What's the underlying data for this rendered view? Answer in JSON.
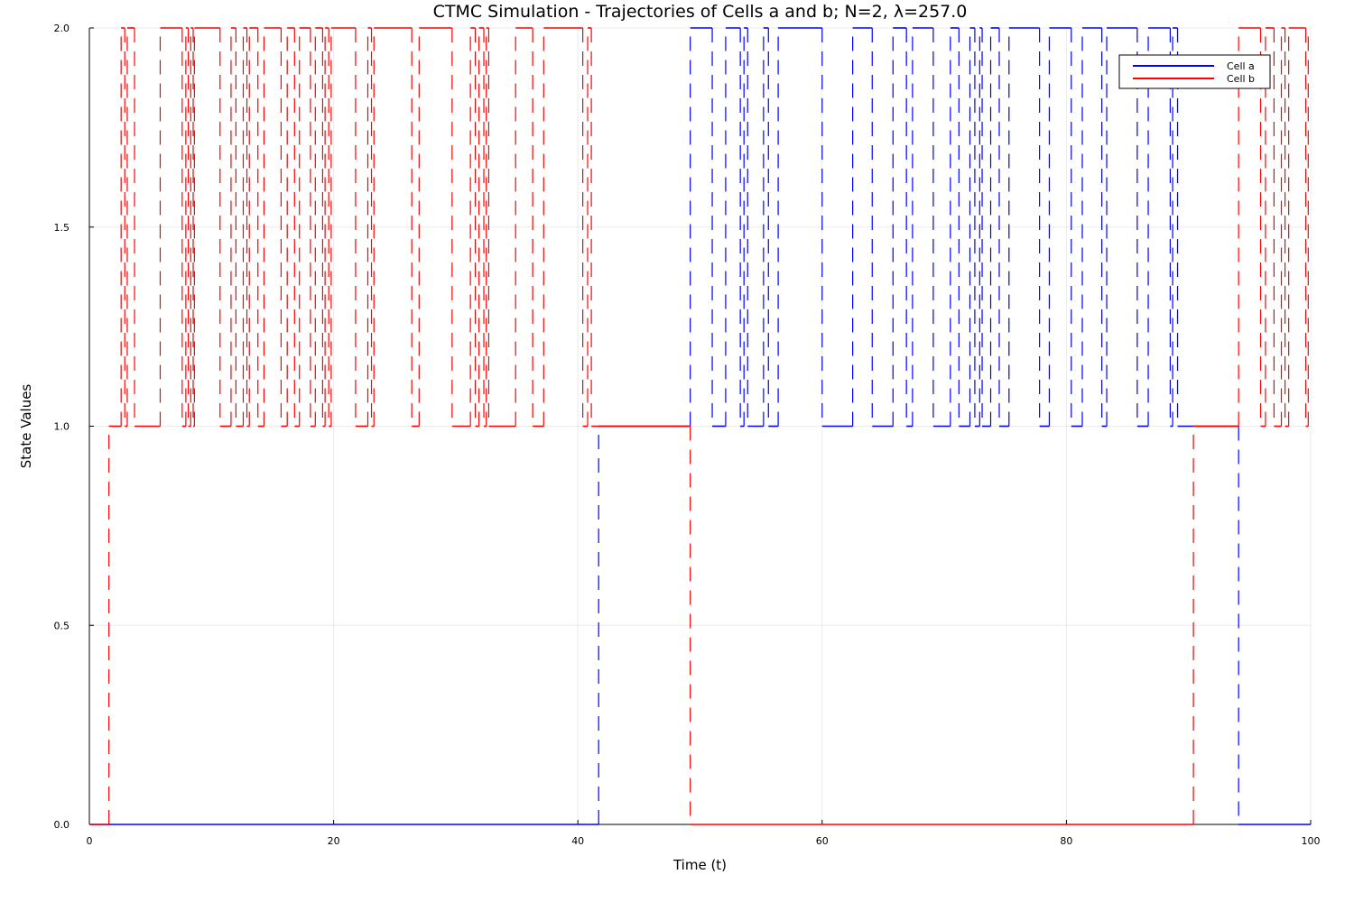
{
  "chart_data": {
    "type": "line",
    "step": true,
    "title": "CTMC Simulation - Trajectories of Cells a and b; N=2, λ=257.0",
    "xlabel": "Time (t)",
    "ylabel": "State Values",
    "xlim": [
      0,
      100
    ],
    "ylim": [
      0,
      2
    ],
    "xticks": [
      "0",
      "20",
      "40",
      "60",
      "80",
      "100"
    ],
    "yticks": [
      "0.0",
      "0.5",
      "1.0",
      "1.5",
      "2.0"
    ],
    "grid": true,
    "legend_position": "top-right",
    "series": [
      {
        "name": "Cell a",
        "color": "#0000ff",
        "points": [
          [
            0,
            0
          ],
          [
            41.7,
            0
          ],
          [
            41.7,
            1
          ],
          [
            49.2,
            1
          ],
          [
            49.2,
            2
          ],
          [
            51.0,
            2
          ],
          [
            51.0,
            1
          ],
          [
            52.1,
            1
          ],
          [
            52.1,
            2
          ],
          [
            53.3,
            2
          ],
          [
            53.3,
            1
          ],
          [
            53.6,
            1
          ],
          [
            53.6,
            2
          ],
          [
            53.9,
            2
          ],
          [
            53.9,
            1
          ],
          [
            55.2,
            1
          ],
          [
            55.2,
            2
          ],
          [
            55.6,
            2
          ],
          [
            55.6,
            1
          ],
          [
            56.4,
            1
          ],
          [
            56.4,
            2
          ],
          [
            60.0,
            2
          ],
          [
            60.0,
            1
          ],
          [
            62.5,
            1
          ],
          [
            62.5,
            2
          ],
          [
            64.1,
            2
          ],
          [
            64.1,
            1
          ],
          [
            65.8,
            1
          ],
          [
            65.8,
            2
          ],
          [
            66.9,
            2
          ],
          [
            66.9,
            1
          ],
          [
            67.4,
            1
          ],
          [
            67.4,
            2
          ],
          [
            69.1,
            2
          ],
          [
            69.1,
            1
          ],
          [
            70.5,
            1
          ],
          [
            70.5,
            2
          ],
          [
            71.2,
            2
          ],
          [
            71.2,
            1
          ],
          [
            72.1,
            1
          ],
          [
            72.1,
            2
          ],
          [
            72.5,
            2
          ],
          [
            72.5,
            1
          ],
          [
            72.9,
            1
          ],
          [
            72.9,
            2
          ],
          [
            73.1,
            2
          ],
          [
            73.1,
            1
          ],
          [
            73.8,
            1
          ],
          [
            73.8,
            2
          ],
          [
            74.5,
            2
          ],
          [
            74.5,
            1
          ],
          [
            75.3,
            1
          ],
          [
            75.3,
            2
          ],
          [
            77.8,
            2
          ],
          [
            77.8,
            1
          ],
          [
            78.6,
            1
          ],
          [
            78.6,
            2
          ],
          [
            80.4,
            2
          ],
          [
            80.4,
            1
          ],
          [
            81.3,
            1
          ],
          [
            81.3,
            2
          ],
          [
            82.9,
            2
          ],
          [
            82.9,
            1
          ],
          [
            83.3,
            1
          ],
          [
            83.3,
            2
          ],
          [
            85.8,
            2
          ],
          [
            85.8,
            1
          ],
          [
            86.7,
            1
          ],
          [
            86.7,
            2
          ],
          [
            88.5,
            2
          ],
          [
            88.5,
            1
          ],
          [
            88.7,
            1
          ],
          [
            88.7,
            2
          ],
          [
            89.1,
            2
          ],
          [
            89.1,
            1
          ],
          [
            94.1,
            1
          ],
          [
            94.1,
            0
          ],
          [
            100,
            0
          ]
        ]
      },
      {
        "name": "Cell b",
        "color": "#ff0000",
        "points": [
          [
            0,
            0
          ],
          [
            1.6,
            0
          ],
          [
            1.6,
            1
          ],
          [
            2.6,
            1
          ],
          [
            2.6,
            2
          ],
          [
            2.9,
            2
          ],
          [
            2.9,
            1
          ],
          [
            3.1,
            1
          ],
          [
            3.1,
            2
          ],
          [
            3.7,
            2
          ],
          [
            3.7,
            1
          ],
          [
            5.8,
            1
          ],
          [
            5.8,
            2
          ],
          [
            7.6,
            2
          ],
          [
            7.6,
            1
          ],
          [
            7.9,
            1
          ],
          [
            7.9,
            2
          ],
          [
            8.1,
            2
          ],
          [
            8.1,
            1
          ],
          [
            8.3,
            1
          ],
          [
            8.3,
            2
          ],
          [
            8.5,
            2
          ],
          [
            8.5,
            1
          ],
          [
            8.6,
            1
          ],
          [
            8.6,
            2
          ],
          [
            10.7,
            2
          ],
          [
            10.7,
            1
          ],
          [
            11.6,
            1
          ],
          [
            11.6,
            2
          ],
          [
            12.0,
            2
          ],
          [
            12.0,
            1
          ],
          [
            12.6,
            1
          ],
          [
            12.6,
            2
          ],
          [
            12.9,
            2
          ],
          [
            12.9,
            1
          ],
          [
            13.1,
            1
          ],
          [
            13.1,
            2
          ],
          [
            13.8,
            2
          ],
          [
            13.8,
            1
          ],
          [
            14.3,
            1
          ],
          [
            14.3,
            2
          ],
          [
            15.7,
            2
          ],
          [
            15.7,
            1
          ],
          [
            16.2,
            1
          ],
          [
            16.2,
            2
          ],
          [
            16.8,
            2
          ],
          [
            16.8,
            1
          ],
          [
            17.2,
            1
          ],
          [
            17.2,
            2
          ],
          [
            18.1,
            2
          ],
          [
            18.1,
            1
          ],
          [
            18.5,
            1
          ],
          [
            18.5,
            2
          ],
          [
            19.1,
            2
          ],
          [
            19.1,
            1
          ],
          [
            19.3,
            1
          ],
          [
            19.3,
            2
          ],
          [
            19.6,
            2
          ],
          [
            19.6,
            1
          ],
          [
            19.8,
            1
          ],
          [
            19.8,
            2
          ],
          [
            21.8,
            2
          ],
          [
            21.8,
            1
          ],
          [
            22.8,
            1
          ],
          [
            22.8,
            2
          ],
          [
            23.1,
            2
          ],
          [
            23.1,
            1
          ],
          [
            23.3,
            1
          ],
          [
            23.3,
            2
          ],
          [
            26.4,
            2
          ],
          [
            26.4,
            1
          ],
          [
            27.0,
            1
          ],
          [
            27.0,
            2
          ],
          [
            29.7,
            2
          ],
          [
            29.7,
            1
          ],
          [
            31.2,
            1
          ],
          [
            31.2,
            2
          ],
          [
            31.6,
            2
          ],
          [
            31.6,
            1
          ],
          [
            31.9,
            1
          ],
          [
            31.9,
            2
          ],
          [
            32.3,
            2
          ],
          [
            32.3,
            1
          ],
          [
            32.5,
            1
          ],
          [
            32.5,
            2
          ],
          [
            32.7,
            2
          ],
          [
            32.7,
            1
          ],
          [
            34.9,
            1
          ],
          [
            34.9,
            2
          ],
          [
            36.3,
            2
          ],
          [
            36.3,
            1
          ],
          [
            37.2,
            1
          ],
          [
            37.2,
            2
          ],
          [
            40.4,
            2
          ],
          [
            40.4,
            1
          ],
          [
            40.8,
            1
          ],
          [
            40.8,
            2
          ],
          [
            41.1,
            2
          ],
          [
            41.1,
            1
          ],
          [
            49.2,
            1
          ],
          [
            49.2,
            0
          ],
          [
            90.4,
            0
          ],
          [
            90.4,
            1
          ],
          [
            94.1,
            1
          ],
          [
            94.1,
            2
          ],
          [
            95.9,
            2
          ],
          [
            95.9,
            1
          ],
          [
            96.3,
            1
          ],
          [
            96.3,
            2
          ],
          [
            97.0,
            2
          ],
          [
            97.0,
            1
          ],
          [
            97.6,
            1
          ],
          [
            97.6,
            2
          ],
          [
            97.9,
            2
          ],
          [
            97.9,
            1
          ],
          [
            98.2,
            1
          ],
          [
            98.2,
            2
          ],
          [
            99.6,
            2
          ],
          [
            99.6,
            1
          ],
          [
            99.8,
            1
          ],
          [
            99.8,
            2
          ]
        ]
      }
    ]
  }
}
